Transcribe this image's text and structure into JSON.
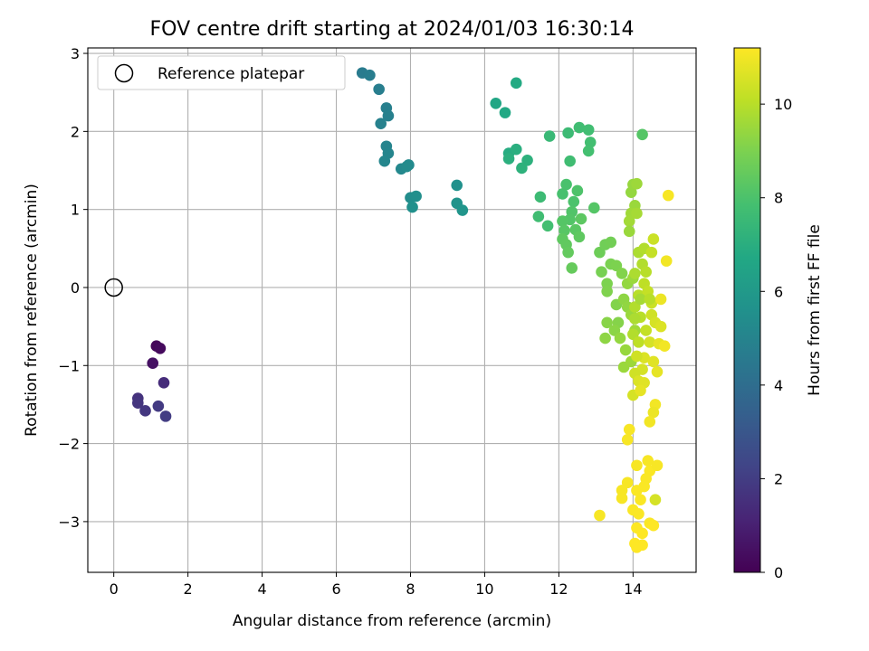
{
  "chart_data": {
    "type": "scatter",
    "title": "FOV centre drift starting at 2024/01/03 16:30:14",
    "xlabel": "Angular distance from reference (arcmin)",
    "ylabel": "Rotation from reference (arcmin)",
    "xlim": [
      -0.7,
      15.7
    ],
    "ylim": [
      -3.65,
      3.07
    ],
    "xticks": [
      0,
      2,
      4,
      6,
      8,
      10,
      12,
      14
    ],
    "yticks": [
      -3,
      -2,
      -1,
      0,
      1,
      2,
      3
    ],
    "grid": true,
    "legend": {
      "position": "top-left",
      "entries": [
        "Reference platepar"
      ]
    },
    "reference_point": {
      "x": 0,
      "y": 0,
      "label": "Reference platepar"
    },
    "colorbar": {
      "label": "Hours from first FF file",
      "range": [
        0,
        11.2
      ],
      "ticks": [
        0,
        2,
        4,
        6,
        8,
        10
      ],
      "colormap": "viridis"
    },
    "points": [
      [
        1.15,
        -0.75,
        0.2
      ],
      [
        1.25,
        -0.78,
        0.3
      ],
      [
        1.05,
        -0.97,
        0.5
      ],
      [
        1.35,
        -1.22,
        1.4
      ],
      [
        0.65,
        -1.42,
        1.6
      ],
      [
        0.65,
        -1.48,
        1.7
      ],
      [
        0.85,
        -1.58,
        1.8
      ],
      [
        1.2,
        -1.52,
        1.9
      ],
      [
        1.4,
        -1.65,
        2.0
      ],
      [
        6.7,
        2.75,
        4.6
      ],
      [
        6.9,
        2.72,
        4.7
      ],
      [
        7.15,
        2.54,
        4.75
      ],
      [
        7.35,
        2.3,
        4.8
      ],
      [
        7.4,
        2.2,
        4.85
      ],
      [
        7.2,
        2.1,
        4.9
      ],
      [
        7.35,
        1.81,
        5.0
      ],
      [
        7.4,
        1.72,
        5.05
      ],
      [
        7.3,
        1.62,
        5.1
      ],
      [
        7.75,
        1.52,
        5.2
      ],
      [
        7.95,
        1.57,
        5.3
      ],
      [
        7.9,
        1.55,
        5.35
      ],
      [
        8.0,
        1.15,
        5.4
      ],
      [
        8.15,
        1.17,
        5.5
      ],
      [
        8.05,
        1.03,
        5.55
      ],
      [
        9.25,
        1.31,
        5.6
      ],
      [
        9.25,
        1.08,
        5.7
      ],
      [
        9.4,
        0.99,
        5.8
      ],
      [
        10.3,
        2.36,
        6.6
      ],
      [
        10.55,
        2.24,
        6.7
      ],
      [
        10.85,
        2.62,
        6.8
      ],
      [
        10.65,
        1.72,
        6.9
      ],
      [
        10.85,
        1.77,
        7.0
      ],
      [
        10.65,
        1.65,
        7.05
      ],
      [
        11.15,
        1.63,
        7.1
      ],
      [
        11.0,
        1.53,
        7.15
      ],
      [
        11.75,
        1.94,
        7.5
      ],
      [
        12.25,
        1.98,
        7.6
      ],
      [
        12.55,
        2.05,
        7.7
      ],
      [
        12.8,
        2.02,
        7.75
      ],
      [
        12.85,
        1.86,
        7.8
      ],
      [
        12.8,
        1.75,
        7.85
      ],
      [
        12.3,
        1.62,
        7.7
      ],
      [
        11.5,
        1.16,
        7.6
      ],
      [
        11.45,
        0.91,
        7.7
      ],
      [
        11.7,
        0.79,
        7.8
      ],
      [
        12.1,
        1.2,
        7.9
      ],
      [
        12.2,
        1.32,
        7.95
      ],
      [
        12.4,
        1.1,
        8.0
      ],
      [
        12.5,
        1.24,
        8.05
      ],
      [
        12.35,
        0.97,
        8.1
      ],
      [
        12.3,
        0.87,
        8.15
      ],
      [
        12.1,
        0.85,
        8.2
      ],
      [
        12.15,
        0.73,
        8.25
      ],
      [
        12.45,
        0.74,
        8.3
      ],
      [
        12.6,
        0.88,
        8.35
      ],
      [
        12.95,
        1.02,
        8.2
      ],
      [
        12.1,
        0.62,
        8.4
      ],
      [
        12.2,
        0.55,
        8.45
      ],
      [
        12.25,
        0.45,
        8.5
      ],
      [
        12.35,
        0.25,
        8.55
      ],
      [
        12.55,
        0.65,
        8.4
      ],
      [
        13.1,
        0.45,
        8.7
      ],
      [
        13.25,
        0.55,
        8.75
      ],
      [
        13.4,
        0.58,
        8.8
      ],
      [
        13.15,
        0.2,
        8.9
      ],
      [
        13.4,
        0.3,
        8.95
      ],
      [
        13.55,
        0.28,
        9.0
      ],
      [
        13.3,
        0.05,
        9.0
      ],
      [
        13.3,
        -0.05,
        9.05
      ],
      [
        13.7,
        0.18,
        9.1
      ],
      [
        13.55,
        -0.22,
        9.1
      ],
      [
        13.6,
        -0.45,
        9.15
      ],
      [
        13.3,
        -0.45,
        9.2
      ],
      [
        13.5,
        -0.55,
        9.25
      ],
      [
        13.75,
        -0.15,
        9.3
      ],
      [
        13.85,
        -0.25,
        9.35
      ],
      [
        13.65,
        -0.65,
        9.4
      ],
      [
        13.25,
        -0.65,
        9.3
      ],
      [
        13.8,
        -0.8,
        9.45
      ],
      [
        13.75,
        -1.02,
        9.5
      ],
      [
        13.95,
        -0.95,
        9.55
      ],
      [
        13.85,
        0.05,
        9.4
      ],
      [
        14.0,
        0.12,
        9.5
      ],
      [
        13.95,
        -0.35,
        9.5
      ],
      [
        14.05,
        -0.55,
        9.6
      ],
      [
        13.95,
        1.22,
        9.4
      ],
      [
        14.0,
        1.32,
        9.45
      ],
      [
        14.05,
        1.05,
        9.5
      ],
      [
        14.1,
        1.33,
        9.55
      ],
      [
        13.95,
        0.95,
        9.6
      ],
      [
        13.9,
        0.85,
        9.65
      ],
      [
        14.1,
        0.95,
        9.7
      ],
      [
        13.9,
        0.72,
        9.5
      ],
      [
        14.25,
        1.96,
        8.2
      ],
      [
        14.15,
        0.45,
        9.8
      ],
      [
        14.3,
        0.5,
        9.9
      ],
      [
        14.55,
        0.62,
        10.3
      ],
      [
        14.5,
        0.45,
        10.2
      ],
      [
        14.25,
        0.3,
        9.9
      ],
      [
        14.35,
        0.2,
        10.0
      ],
      [
        14.05,
        0.18,
        9.8
      ],
      [
        14.3,
        0.05,
        10.1
      ],
      [
        14.15,
        -0.1,
        10.0
      ],
      [
        14.4,
        -0.05,
        10.2
      ],
      [
        14.5,
        -0.2,
        10.3
      ],
      [
        14.05,
        -0.25,
        9.9
      ],
      [
        14.2,
        -0.38,
        10.0
      ],
      [
        14.5,
        -0.35,
        10.4
      ],
      [
        14.6,
        -0.45,
        10.5
      ],
      [
        14.75,
        -0.5,
        10.6
      ],
      [
        14.0,
        -0.6,
        9.9
      ],
      [
        14.15,
        -0.7,
        10.1
      ],
      [
        14.45,
        -0.7,
        10.5
      ],
      [
        14.7,
        -0.72,
        10.8
      ],
      [
        14.3,
        -0.9,
        10.6
      ],
      [
        14.1,
        -0.88,
        10.4
      ],
      [
        14.55,
        -0.95,
        10.7
      ],
      [
        14.25,
        -1.05,
        10.5
      ],
      [
        14.05,
        -1.1,
        10.4
      ],
      [
        14.65,
        -1.08,
        10.8
      ],
      [
        14.15,
        -1.2,
        10.6
      ],
      [
        14.3,
        -1.22,
        10.7
      ],
      [
        14.0,
        -1.38,
        10.5
      ],
      [
        14.2,
        -1.32,
        10.8
      ],
      [
        14.85,
        -0.75,
        11.0
      ],
      [
        14.75,
        -0.15,
        10.9
      ],
      [
        14.9,
        0.34,
        11.0
      ],
      [
        14.95,
        1.18,
        11.1
      ],
      [
        14.6,
        -1.5,
        11.0
      ],
      [
        14.55,
        -1.6,
        10.9
      ],
      [
        14.45,
        -1.72,
        11.0
      ],
      [
        13.9,
        -1.82,
        11.1
      ],
      [
        13.85,
        -1.95,
        11.1
      ],
      [
        14.4,
        -2.22,
        11.1
      ],
      [
        14.45,
        -2.35,
        11.15
      ],
      [
        14.1,
        -2.28,
        11.1
      ],
      [
        14.65,
        -2.28,
        11.1
      ],
      [
        14.35,
        -2.45,
        11.15
      ],
      [
        13.85,
        -2.5,
        11.1
      ],
      [
        14.3,
        -2.55,
        11.15
      ],
      [
        14.1,
        -2.6,
        11.15
      ],
      [
        13.7,
        -2.6,
        11.1
      ],
      [
        14.6,
        -2.72,
        10.5
      ],
      [
        13.7,
        -2.7,
        11.1
      ],
      [
        14.2,
        -2.72,
        11.15
      ],
      [
        14.0,
        -2.85,
        11.15
      ],
      [
        13.1,
        -2.92,
        11.1
      ],
      [
        14.15,
        -2.9,
        11.15
      ],
      [
        14.45,
        -3.02,
        11.15
      ],
      [
        14.55,
        -3.05,
        11.2
      ],
      [
        14.1,
        -3.08,
        11.2
      ],
      [
        14.25,
        -3.15,
        11.2
      ],
      [
        14.05,
        -3.28,
        11.2
      ],
      [
        14.25,
        -3.3,
        11.2
      ],
      [
        14.1,
        -3.33,
        11.2
      ],
      [
        14.2,
        -0.15,
        9.7
      ],
      [
        14.45,
        -0.15,
        10.0
      ],
      [
        14.35,
        -0.55,
        10.2
      ],
      [
        14.05,
        -0.4,
        9.8
      ]
    ]
  }
}
